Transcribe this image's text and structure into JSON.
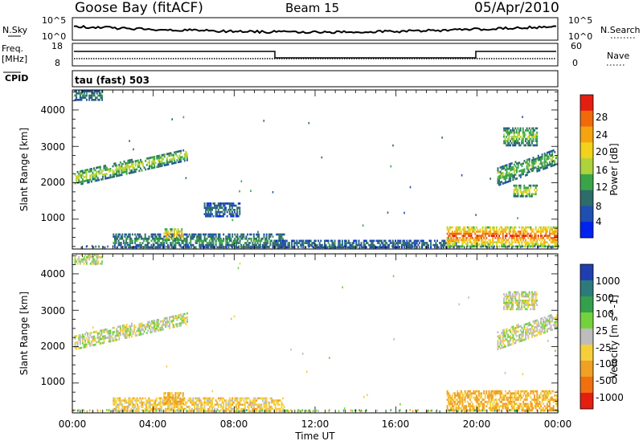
{
  "header": {
    "station": "Goose Bay (fitACF)",
    "beam": "Beam 15",
    "date": "05/Apr/2010"
  },
  "top_panels": {
    "nsky_label": "N.Sky",
    "nsearch_label": "N.Search",
    "nsky_ticks": [
      "10^5",
      "10^0"
    ],
    "nsearch_ticks": [
      "10^5",
      "10^0"
    ],
    "freq_label": "Freq.",
    "freq_unit": "[MHz]",
    "freq_ticks": [
      "18",
      "8"
    ],
    "nave_label": "Nave",
    "nave_ticks": [
      "60",
      "0"
    ],
    "cpid_label": "CPID",
    "cpid_text": "tau (fast) 503"
  },
  "x_axis": {
    "label": "Time UT",
    "ticks": [
      "00:00",
      "04:00",
      "08:00",
      "12:00",
      "16:00",
      "20:00",
      "00:00"
    ]
  },
  "y_axis": {
    "label": "Slant Range [km]",
    "ticks": [
      "1000",
      "2000",
      "3000",
      "4000"
    ]
  },
  "colorbars": {
    "power": {
      "label": "Power [dB]",
      "ticks": [
        "4",
        "8",
        "12",
        "16",
        "20",
        "24",
        "28"
      ],
      "colors": [
        "#0022ee",
        "#1f4fb0",
        "#2e6b6b",
        "#3aa548",
        "#aed23c",
        "#f2d21a",
        "#f5a30e",
        "#f06a0c",
        "#e51e12"
      ]
    },
    "velocity": {
      "label": "Velocity [m s^-1]",
      "ticks": [
        "1000",
        "500",
        "100",
        "25",
        "-25",
        "-100",
        "-500",
        "-1000"
      ],
      "colors": [
        "#1f3fb0",
        "#2d7a7a",
        "#34a04c",
        "#74d13e",
        "#bdbdbd",
        "#f5cf3a",
        "#f0a024",
        "#f07010",
        "#e51e12"
      ]
    }
  },
  "chart_data": [
    {
      "type": "heatmap",
      "panel": "power",
      "x": "time UT (hours, 0-24)",
      "y": "slant range (km)",
      "xlim": [
        0,
        24
      ],
      "ylim": [
        180,
        4550
      ],
      "zlim": [
        0,
        32
      ],
      "features": [
        {
          "t0": 0.1,
          "t1": 5.7,
          "r0": 1900,
          "r1": 2300,
          "r_end0": 2600,
          "r_end1": 2900,
          "power": 14
        },
        {
          "t0": 0.1,
          "t1": 1.5,
          "r0": 4250,
          "r1": 4500,
          "power": 8
        },
        {
          "t0": 2.0,
          "t1": 10.5,
          "r0": 200,
          "r1": 560,
          "power": 9
        },
        {
          "t0": 4.5,
          "t1": 5.5,
          "r0": 400,
          "r1": 700,
          "power": 20
        },
        {
          "t0": 6.5,
          "t1": 8.3,
          "r0": 1050,
          "r1": 1400,
          "power": 7
        },
        {
          "t0": 10.0,
          "t1": 19.0,
          "r0": 200,
          "r1": 380,
          "power": 7
        },
        {
          "t0": 18.5,
          "t1": 24.0,
          "r0": 220,
          "r1": 800,
          "power": 24
        },
        {
          "t0": 21.0,
          "t1": 24.0,
          "r0": 1900,
          "r1": 2400,
          "r_end0": 2500,
          "r_end1": 2900,
          "power": 12
        },
        {
          "t0": 21.3,
          "t1": 23.0,
          "r0": 3000,
          "r1": 3500,
          "power": 13
        },
        {
          "t0": 21.8,
          "t1": 23.0,
          "r0": 1600,
          "r1": 1900,
          "power": 16
        }
      ]
    },
    {
      "type": "heatmap",
      "panel": "velocity",
      "x": "time UT (hours, 0-24)",
      "y": "slant range (km)",
      "xlim": [
        0,
        24
      ],
      "ylim": [
        180,
        4550
      ],
      "zlim": [
        -1000,
        1000
      ],
      "features": [
        {
          "t0": 0.1,
          "t1": 5.7,
          "r0": 1900,
          "r1": 2300,
          "r_end0": 2600,
          "r_end1": 2900,
          "velocity": 0
        },
        {
          "t0": 2.0,
          "t1": 10.5,
          "r0": 200,
          "r1": 560,
          "velocity": -60
        },
        {
          "t0": 4.5,
          "t1": 5.5,
          "r0": 400,
          "r1": 700,
          "velocity": -120
        },
        {
          "t0": 18.5,
          "t1": 24.0,
          "r0": 220,
          "r1": 800,
          "velocity": -110
        },
        {
          "t0": 21.0,
          "t1": 24.0,
          "r0": 1900,
          "r1": 2400,
          "r_end0": 2500,
          "r_end1": 2900,
          "velocity": 0
        },
        {
          "t0": 21.3,
          "t1": 23.0,
          "r0": 3000,
          "r1": 3500,
          "velocity": 0
        },
        {
          "t0": 0.1,
          "t1": 1.5,
          "r0": 4250,
          "r1": 4500,
          "velocity": 0
        }
      ]
    }
  ]
}
